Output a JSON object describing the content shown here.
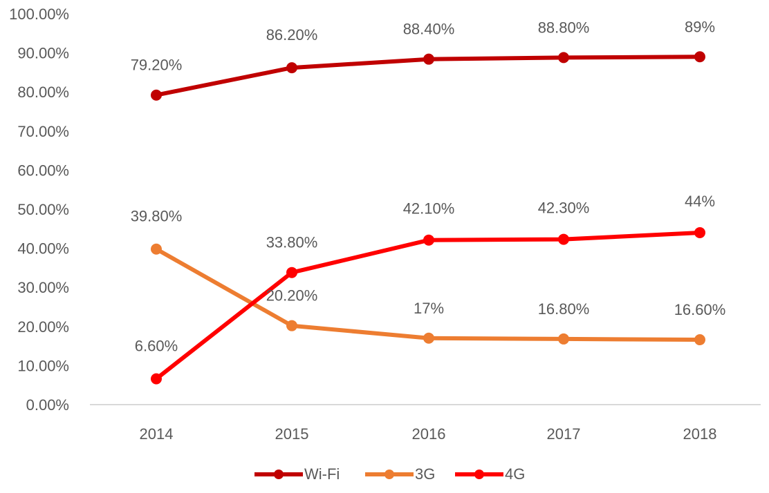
{
  "chart_data": {
    "type": "line",
    "title": "",
    "xlabel": "",
    "ylabel": "",
    "categories": [
      "2014",
      "2015",
      "2016",
      "2017",
      "2018"
    ],
    "ylim": [
      0,
      100
    ],
    "yticks": [
      "0.00%",
      "10.00%",
      "20.00%",
      "30.00%",
      "40.00%",
      "50.00%",
      "60.00%",
      "70.00%",
      "80.00%",
      "90.00%",
      "100.00%"
    ],
    "grid": false,
    "legend_position": "bottom",
    "series": [
      {
        "name": "Wi-Fi",
        "color": "#C00000",
        "values": [
          79.2,
          86.2,
          88.4,
          88.8,
          89
        ],
        "labels": [
          "79.20%",
          "86.20%",
          "88.40%",
          "88.80%",
          "89%"
        ]
      },
      {
        "name": "3G",
        "color": "#ED7D31",
        "values": [
          39.8,
          20.2,
          17,
          16.8,
          16.6
        ],
        "labels": [
          "39.80%",
          "20.20%",
          "17%",
          "16.80%",
          "16.60%"
        ]
      },
      {
        "name": "4G",
        "color": "#FF0000",
        "values": [
          6.6,
          33.8,
          42.1,
          42.3,
          44
        ],
        "labels": [
          "6.60%",
          "33.80%",
          "42.10%",
          "42.30%",
          "44%"
        ]
      }
    ]
  },
  "legend": {
    "items": [
      {
        "label": "Wi-Fi",
        "color": "#C00000"
      },
      {
        "label": "3G",
        "color": "#ED7D31"
      },
      {
        "label": "4G",
        "color": "#FF0000"
      }
    ]
  },
  "axis": {
    "color": "#D9D9D9",
    "text_color": "#595959"
  }
}
